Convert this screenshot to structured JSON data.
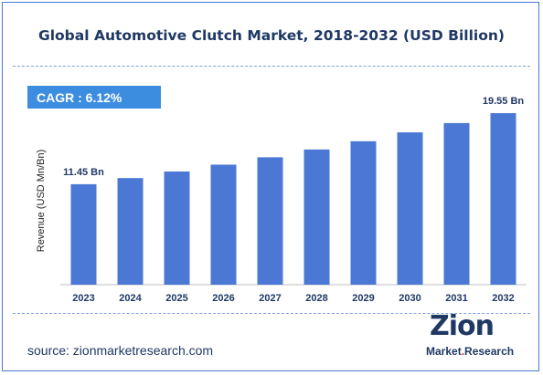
{
  "chart_data": {
    "type": "bar",
    "title": "Global Automotive Clutch Market, 2018-2032 (USD Billion)",
    "ylabel": "Revenue (USD Mn/Bn)",
    "xlabel": "",
    "categories": [
      "2023",
      "2024",
      "2025",
      "2026",
      "2027",
      "2028",
      "2029",
      "2030",
      "2031",
      "2032"
    ],
    "values": [
      11.45,
      12.15,
      12.9,
      13.68,
      14.52,
      15.41,
      16.35,
      17.36,
      18.42,
      19.55
    ],
    "ylim": [
      0,
      20.8
    ],
    "bar_color": "#4a78d4",
    "grid": false,
    "annotations": [
      {
        "category": "2023",
        "label": "11.45 Bn"
      },
      {
        "category": "2032",
        "label": "19.55 Bn"
      }
    ]
  },
  "cagr": {
    "label": "CAGR :",
    "value": "6.12%",
    "color": "#3c8de0"
  },
  "source": "source: zionmarketresearch.com",
  "logo": {
    "name": "Zion",
    "sub_left": "Market",
    "sub_mid": ".",
    "sub_right": "Research"
  }
}
